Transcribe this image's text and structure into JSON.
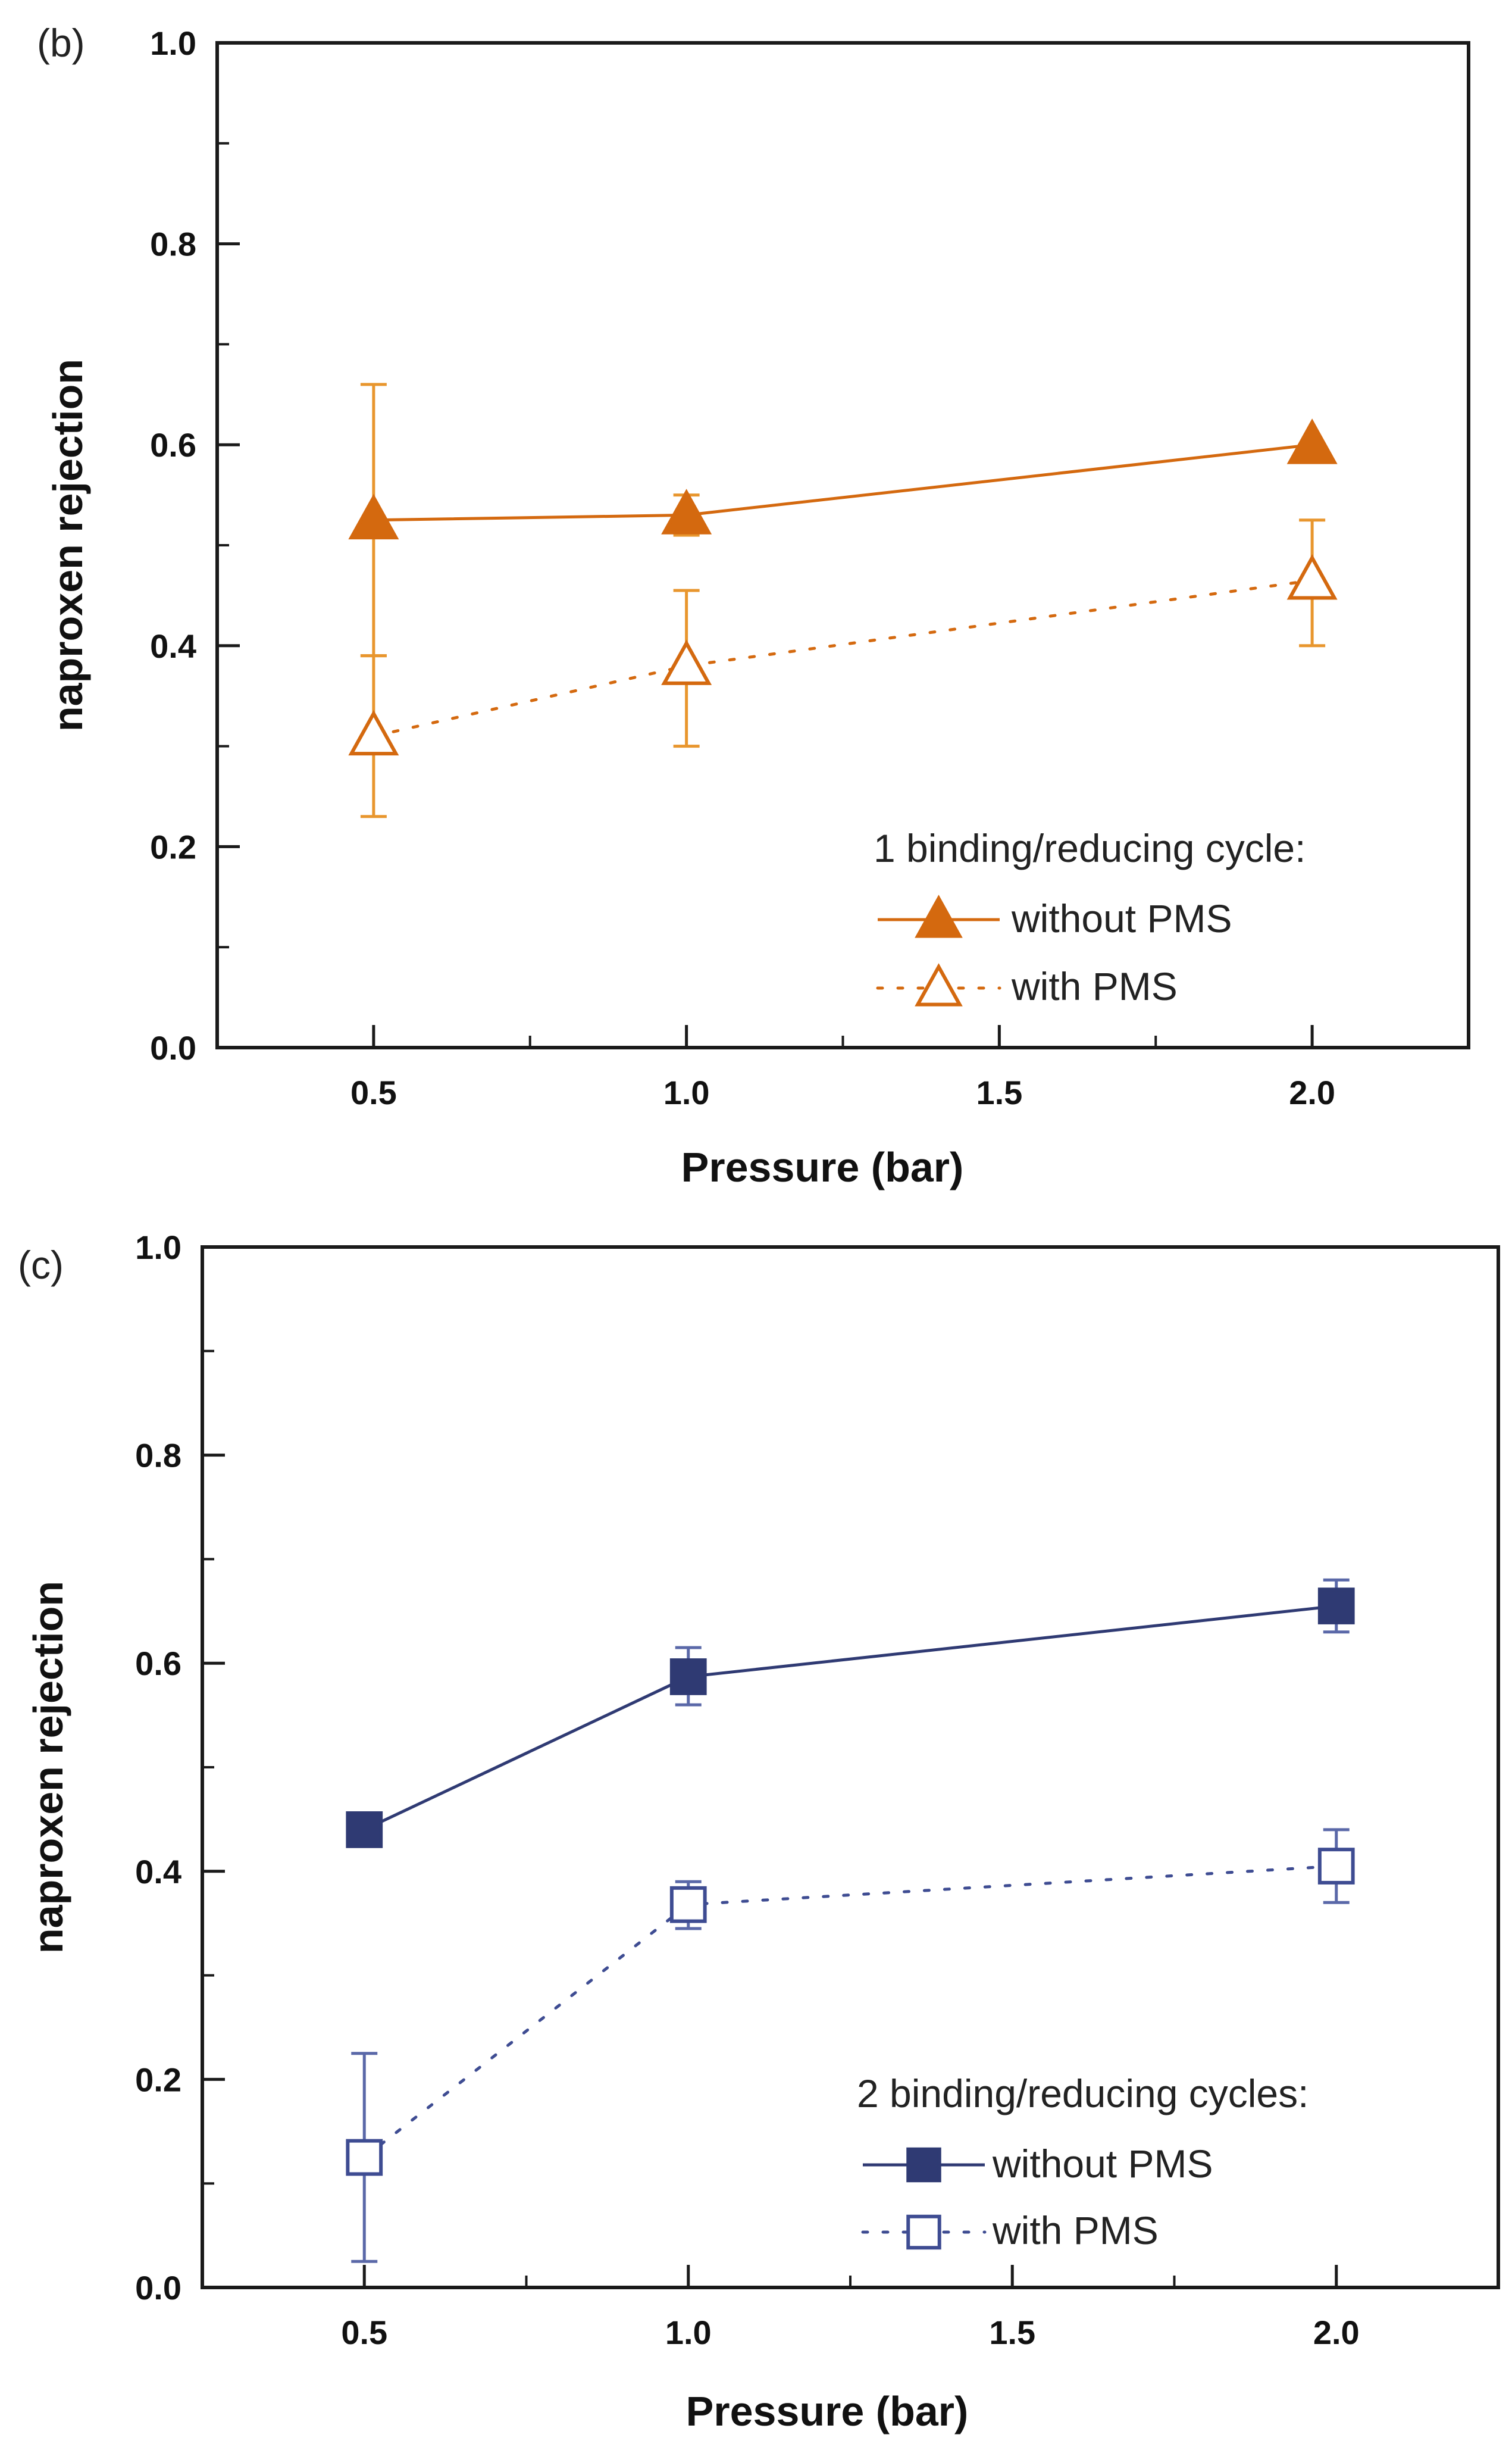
{
  "chart_data": [
    {
      "panel": "(b)",
      "type": "line",
      "xlabel": "Pressure (bar)",
      "ylabel": "naproxen rejection",
      "xlim": [
        0.25,
        2.25
      ],
      "ylim": [
        0.0,
        1.0
      ],
      "x_ticks": [
        0.5,
        1.0,
        1.5,
        2.0
      ],
      "x_tick_labels": [
        "0.5",
        "1.0",
        "1.5",
        "2.0"
      ],
      "y_ticks": [
        0.0,
        0.2,
        0.4,
        0.6,
        0.8,
        1.0
      ],
      "y_tick_labels": [
        "0.0",
        "0.2",
        "0.4",
        "0.6",
        "0.8",
        "1.0"
      ],
      "legend_title": "1 binding/reducing cycle:",
      "legend_position": "bottom-right",
      "series": [
        {
          "name": "without PMS",
          "marker": "triangle",
          "filled": true,
          "dashed": false,
          "color": "#D4690F",
          "error_color": "#E8962E",
          "x": [
            0.5,
            1.0,
            2.0
          ],
          "values": [
            0.525,
            0.53,
            0.6
          ],
          "err_low": [
            0.39,
            0.51,
            0.6
          ],
          "err_high": [
            0.66,
            0.55,
            0.6
          ]
        },
        {
          "name": "with PMS",
          "marker": "triangle",
          "filled": false,
          "dashed": true,
          "color": "#D4690F",
          "error_color": "#E8962E",
          "x": [
            0.5,
            1.0,
            2.0
          ],
          "values": [
            0.31,
            0.38,
            0.465
          ],
          "err_low": [
            0.23,
            0.3,
            0.4
          ],
          "err_high": [
            0.39,
            0.455,
            0.525
          ]
        }
      ]
    },
    {
      "panel": "(c)",
      "type": "line",
      "xlabel": "Pressure (bar)",
      "ylabel": "naproxen rejection",
      "xlim": [
        0.25,
        2.25
      ],
      "ylim": [
        0.0,
        1.0
      ],
      "x_ticks": [
        0.5,
        1.0,
        1.5,
        2.0
      ],
      "x_tick_labels": [
        "0.5",
        "1.0",
        "1.5",
        "2.0"
      ],
      "y_ticks": [
        0.0,
        0.2,
        0.4,
        0.6,
        0.8,
        1.0
      ],
      "y_tick_labels": [
        "0.0",
        "0.2",
        "0.4",
        "0.6",
        "0.8",
        "1.0"
      ],
      "legend_title": "2 binding/reducing cycles:",
      "legend_position": "bottom-right",
      "series": [
        {
          "name": "without PMS",
          "marker": "square",
          "filled": true,
          "dashed": false,
          "color": "#2F3A73",
          "error_color": "#5A68A8",
          "x": [
            0.5,
            1.0,
            2.0
          ],
          "values": [
            0.44,
            0.587,
            0.655
          ],
          "err_low": [
            0.43,
            0.56,
            0.63
          ],
          "err_high": [
            0.45,
            0.615,
            0.68
          ]
        },
        {
          "name": "with PMS",
          "marker": "square",
          "filled": false,
          "dashed": true,
          "color": "#3E4C92",
          "error_color": "#5A68A8",
          "x": [
            0.5,
            1.0,
            2.0
          ],
          "values": [
            0.125,
            0.368,
            0.405
          ],
          "err_low": [
            0.025,
            0.345,
            0.37
          ],
          "err_high": [
            0.225,
            0.39,
            0.44
          ]
        }
      ]
    }
  ]
}
